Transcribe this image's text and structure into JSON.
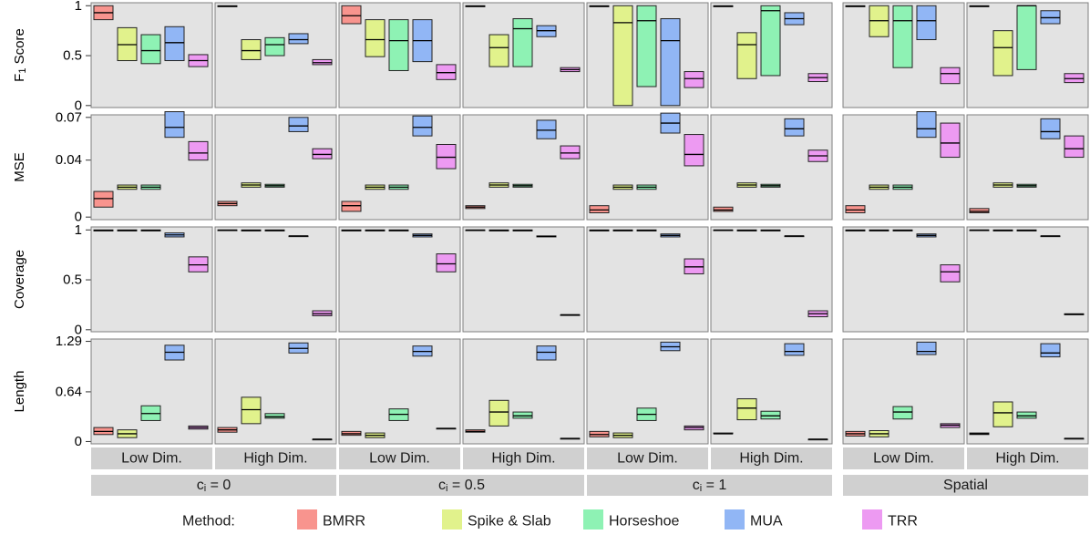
{
  "chart_data": {
    "type": "box",
    "methods": [
      {
        "name": "BMRR",
        "color": "#F8948E"
      },
      {
        "name": "Spike & Slab",
        "color": "#E1F28C"
      },
      {
        "name": "Horseshoe",
        "color": "#8EF2B4"
      },
      {
        "name": "MUA",
        "color": "#91B6F5"
      },
      {
        "name": "TRR",
        "color": "#ED9AF2"
      }
    ],
    "legend_title": "Method:",
    "legend_position": "bottom",
    "column_strips": [
      "Low Dim.",
      "High Dim.",
      "Low Dim.",
      "High Dim.",
      "Low Dim.",
      "High Dim.",
      "Low Dim.",
      "High Dim."
    ],
    "groups": [
      {
        "label_main": "c",
        "label_sub": "i",
        "label_rest": " = 0"
      },
      {
        "label_main": "c",
        "label_sub": "i",
        "label_rest": " = 0.5"
      },
      {
        "label_main": "c",
        "label_sub": "i",
        "label_rest": " = 1"
      },
      {
        "label_main": "Spatial",
        "label_sub": "",
        "label_rest": ""
      }
    ],
    "rows": [
      {
        "ylabel": "F",
        "ylabel_sub": "1",
        "ylabel_rest": " Score",
        "ylim": [
          -0.02,
          1.03
        ],
        "ticks": [
          {
            "v": 0,
            "label": "0"
          },
          {
            "v": 0.5,
            "label": "0.5"
          },
          {
            "v": 1,
            "label": "1"
          }
        ],
        "boxes": [
          [
            [
              0.86,
              0.93,
              1.0
            ],
            [
              0.45,
              0.61,
              0.78
            ],
            [
              0.42,
              0.55,
              0.71
            ],
            [
              0.45,
              0.63,
              0.79
            ],
            [
              0.39,
              0.45,
              0.51
            ]
          ],
          [
            [
              0.99,
              0.995,
              1.0
            ],
            [
              0.46,
              0.55,
              0.66
            ],
            [
              0.5,
              0.61,
              0.68
            ],
            [
              0.62,
              0.66,
              0.72
            ],
            [
              0.41,
              0.43,
              0.46
            ]
          ],
          [
            [
              0.82,
              0.9,
              1.0
            ],
            [
              0.49,
              0.66,
              0.86
            ],
            [
              0.35,
              0.65,
              0.86
            ],
            [
              0.44,
              0.65,
              0.86
            ],
            [
              0.26,
              0.33,
              0.41
            ]
          ],
          [
            [
              0.99,
              0.995,
              1.0
            ],
            [
              0.39,
              0.58,
              0.71
            ],
            [
              0.39,
              0.77,
              0.87
            ],
            [
              0.69,
              0.75,
              0.8
            ],
            [
              0.34,
              0.36,
              0.38
            ]
          ],
          [
            [
              0.99,
              0.995,
              1.0
            ],
            [
              0.0,
              0.83,
              1.0
            ],
            [
              0.19,
              0.85,
              1.0
            ],
            [
              0.0,
              0.65,
              0.87
            ],
            [
              0.18,
              0.27,
              0.34
            ]
          ],
          [
            [
              0.99,
              0.995,
              1.0
            ],
            [
              0.27,
              0.61,
              0.73
            ],
            [
              0.3,
              0.95,
              1.0
            ],
            [
              0.81,
              0.87,
              0.93
            ],
            [
              0.24,
              0.28,
              0.32
            ]
          ],
          [
            [
              0.99,
              0.995,
              1.0
            ],
            [
              0.69,
              0.85,
              1.0
            ],
            [
              0.38,
              0.85,
              1.0
            ],
            [
              0.66,
              0.85,
              1.0
            ],
            [
              0.22,
              0.32,
              0.38
            ]
          ],
          [
            [
              0.99,
              0.995,
              1.0
            ],
            [
              0.3,
              0.58,
              0.75
            ],
            [
              0.36,
              1.0,
              1.0
            ],
            [
              0.82,
              0.88,
              0.95
            ],
            [
              0.23,
              0.27,
              0.32
            ]
          ]
        ]
      },
      {
        "ylabel": "MSE",
        "ylabel_sub": "",
        "ylabel_rest": "",
        "ylim": [
          -0.0018,
          0.0718
        ],
        "ticks": [
          {
            "v": 0,
            "label": "0"
          },
          {
            "v": 0.04,
            "label": "0.04"
          },
          {
            "v": 0.07,
            "label": "0.07"
          }
        ],
        "boxes": [
          [
            [
              0.007,
              0.013,
              0.018
            ],
            [
              0.0195,
              0.021,
              0.0225
            ],
            [
              0.0195,
              0.021,
              0.0225
            ],
            [
              0.056,
              0.063,
              0.074
            ],
            [
              0.04,
              0.045,
              0.053
            ]
          ],
          [
            [
              0.008,
              0.0095,
              0.011
            ],
            [
              0.021,
              0.0225,
              0.024
            ],
            [
              0.021,
              0.022,
              0.023
            ],
            [
              0.06,
              0.064,
              0.07
            ],
            [
              0.041,
              0.044,
              0.048
            ]
          ],
          [
            [
              0.004,
              0.008,
              0.011
            ],
            [
              0.0195,
              0.021,
              0.0225
            ],
            [
              0.0195,
              0.021,
              0.0225
            ],
            [
              0.057,
              0.063,
              0.071
            ],
            [
              0.034,
              0.042,
              0.051
            ]
          ],
          [
            [
              0.006,
              0.007,
              0.008
            ],
            [
              0.021,
              0.0225,
              0.024
            ],
            [
              0.021,
              0.022,
              0.023
            ],
            [
              0.055,
              0.061,
              0.068
            ],
            [
              0.041,
              0.045,
              0.05
            ]
          ],
          [
            [
              0.003,
              0.005,
              0.008
            ],
            [
              0.0195,
              0.021,
              0.0225
            ],
            [
              0.0195,
              0.021,
              0.0225
            ],
            [
              0.059,
              0.066,
              0.073
            ],
            [
              0.036,
              0.044,
              0.058
            ]
          ],
          [
            [
              0.004,
              0.005,
              0.007
            ],
            [
              0.021,
              0.0225,
              0.024
            ],
            [
              0.021,
              0.022,
              0.023
            ],
            [
              0.057,
              0.062,
              0.069
            ],
            [
              0.039,
              0.043,
              0.047
            ]
          ],
          [
            [
              0.003,
              0.005,
              0.008
            ],
            [
              0.0195,
              0.021,
              0.0225
            ],
            [
              0.0195,
              0.021,
              0.0225
            ],
            [
              0.056,
              0.062,
              0.074
            ],
            [
              0.042,
              0.052,
              0.066
            ]
          ],
          [
            [
              0.003,
              0.004,
              0.006
            ],
            [
              0.021,
              0.0225,
              0.024
            ],
            [
              0.021,
              0.022,
              0.023
            ],
            [
              0.055,
              0.06,
              0.069
            ],
            [
              0.042,
              0.048,
              0.057
            ]
          ]
        ]
      },
      {
        "ylabel": "Coverage",
        "ylabel_sub": "",
        "ylabel_rest": "",
        "ylim": [
          -0.02,
          1.03
        ],
        "ticks": [
          {
            "v": 0,
            "label": "0"
          },
          {
            "v": 0.5,
            "label": "0.5"
          },
          {
            "v": 1,
            "label": "1"
          }
        ],
        "boxes": [
          [
            [
              0.99,
              0.995,
              1.0
            ],
            [
              0.99,
              0.995,
              1.0
            ],
            [
              0.99,
              0.995,
              1.0
            ],
            [
              0.93,
              0.95,
              0.97
            ],
            [
              0.58,
              0.65,
              0.73
            ]
          ],
          [
            [
              0.995,
              0.998,
              1.0
            ],
            [
              0.99,
              0.995,
              1.0
            ],
            [
              0.99,
              0.995,
              1.0
            ],
            [
              0.94,
              0.94,
              0.94
            ],
            [
              0.14,
              0.16,
              0.19
            ]
          ],
          [
            [
              0.99,
              0.995,
              1.0
            ],
            [
              0.99,
              0.995,
              1.0
            ],
            [
              0.99,
              0.995,
              1.0
            ],
            [
              0.93,
              0.945,
              0.96
            ],
            [
              0.58,
              0.66,
              0.76
            ]
          ],
          [
            [
              0.995,
              0.998,
              1.0
            ],
            [
              0.99,
              0.995,
              1.0
            ],
            [
              0.99,
              0.995,
              1.0
            ],
            [
              0.93,
              0.935,
              0.94
            ],
            [
              0.15,
              0.15,
              0.15
            ]
          ],
          [
            [
              0.99,
              0.995,
              1.0
            ],
            [
              0.99,
              0.995,
              1.0
            ],
            [
              0.99,
              0.995,
              1.0
            ],
            [
              0.93,
              0.945,
              0.96
            ],
            [
              0.56,
              0.63,
              0.71
            ]
          ],
          [
            [
              0.995,
              0.998,
              1.0
            ],
            [
              0.99,
              0.995,
              1.0
            ],
            [
              0.99,
              0.995,
              1.0
            ],
            [
              0.94,
              0.94,
              0.94
            ],
            [
              0.13,
              0.16,
              0.19
            ]
          ],
          [
            [
              0.99,
              0.995,
              1.0
            ],
            [
              0.99,
              0.995,
              1.0
            ],
            [
              0.99,
              0.995,
              1.0
            ],
            [
              0.93,
              0.945,
              0.96
            ],
            [
              0.48,
              0.58,
              0.65
            ]
          ],
          [
            [
              0.995,
              0.998,
              1.0
            ],
            [
              0.99,
              0.995,
              1.0
            ],
            [
              0.99,
              0.995,
              1.0
            ],
            [
              0.94,
              0.94,
              0.94
            ],
            [
              0.15,
              0.155,
              0.16
            ]
          ]
        ]
      },
      {
        "ylabel": "Length",
        "ylabel_sub": "",
        "ylabel_rest": "",
        "ylim": [
          -0.03,
          1.32
        ],
        "ticks": [
          {
            "v": 0,
            "label": "0"
          },
          {
            "v": 0.64,
            "label": "0.64"
          },
          {
            "v": 1.29,
            "label": "1.29"
          }
        ],
        "boxes": [
          [
            [
              0.09,
              0.13,
              0.18
            ],
            [
              0.05,
              0.1,
              0.15
            ],
            [
              0.27,
              0.36,
              0.46
            ],
            [
              1.05,
              1.15,
              1.24
            ],
            [
              0.16,
              0.18,
              0.2
            ]
          ],
          [
            [
              0.12,
              0.15,
              0.18
            ],
            [
              0.23,
              0.41,
              0.57
            ],
            [
              0.3,
              0.32,
              0.36
            ],
            [
              1.14,
              1.2,
              1.27
            ],
            [
              0.03,
              0.03,
              0.03
            ]
          ],
          [
            [
              0.08,
              0.1,
              0.13
            ],
            [
              0.05,
              0.08,
              0.11
            ],
            [
              0.27,
              0.35,
              0.42
            ],
            [
              1.1,
              1.16,
              1.23
            ],
            [
              0.17,
              0.17,
              0.17
            ]
          ],
          [
            [
              0.12,
              0.13,
              0.15
            ],
            [
              0.2,
              0.38,
              0.53
            ],
            [
              0.3,
              0.33,
              0.38
            ],
            [
              1.05,
              1.15,
              1.23
            ],
            [
              0.04,
              0.04,
              0.04
            ]
          ],
          [
            [
              0.06,
              0.09,
              0.13
            ],
            [
              0.05,
              0.08,
              0.11
            ],
            [
              0.27,
              0.35,
              0.43
            ],
            [
              1.17,
              1.22,
              1.28
            ],
            [
              0.15,
              0.18,
              0.2
            ]
          ],
          [
            [
              0.1,
              0.1,
              0.11
            ],
            [
              0.28,
              0.43,
              0.55
            ],
            [
              0.29,
              0.33,
              0.39
            ],
            [
              1.11,
              1.16,
              1.26
            ],
            [
              0.03,
              0.03,
              0.03
            ]
          ],
          [
            [
              0.07,
              0.1,
              0.13
            ],
            [
              0.06,
              0.1,
              0.14
            ],
            [
              0.29,
              0.38,
              0.45
            ],
            [
              1.12,
              1.16,
              1.28
            ],
            [
              0.18,
              0.21,
              0.23
            ]
          ],
          [
            [
              0.09,
              0.1,
              0.11
            ],
            [
              0.19,
              0.37,
              0.51
            ],
            [
              0.3,
              0.33,
              0.38
            ],
            [
              1.09,
              1.14,
              1.26
            ],
            [
              0.04,
              0.04,
              0.04
            ]
          ]
        ]
      }
    ]
  }
}
